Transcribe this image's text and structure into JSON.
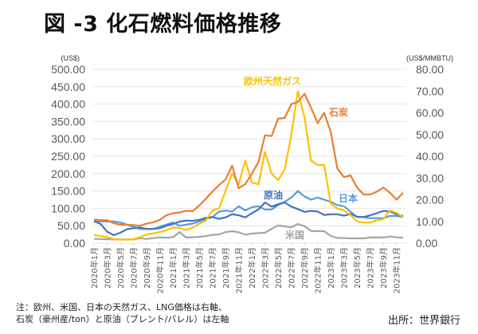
{
  "title": "図 -3 化石燃料価格推移",
  "note_lines": [
    "注：欧州、米国、日本の天然ガス、LNG価格は右軸、",
    "石炭（豪州産/ton）と原油（ブレント/バレル）は左軸"
  ],
  "source": "出所：世界銀行",
  "chart_data": {
    "type": "line",
    "title": "化石燃料価格推移",
    "left_axis": {
      "unit": "(US$)",
      "ylim": [
        0,
        500
      ],
      "ticks": [
        "0.00",
        "50.00",
        "100.00",
        "150.00",
        "200.00",
        "250.00",
        "300.00",
        "350.00",
        "400.00",
        "450.00",
        "500.00"
      ]
    },
    "right_axis": {
      "unit": "(US$/MMBTU)",
      "ylim": [
        0,
        80
      ],
      "ticks": [
        "0.00",
        "10.00",
        "20.00",
        "30.00",
        "40.00",
        "50.00",
        "60.00",
        "70.00",
        "80.00"
      ]
    },
    "x": [
      "2020年1月",
      "2020年2月",
      "2020年3月",
      "2020年4月",
      "2020年5月",
      "2020年6月",
      "2020年7月",
      "2020年8月",
      "2020年9月",
      "2020年10月",
      "2020年11月",
      "2020年12月",
      "2021年1月",
      "2021年2月",
      "2021年3月",
      "2021年4月",
      "2021年5月",
      "2021年6月",
      "2021年7月",
      "2021年8月",
      "2021年9月",
      "2021年10月",
      "2021年11月",
      "2021年12月",
      "2022年1月",
      "2022年2月",
      "2022年3月",
      "2022年4月",
      "2022年5月",
      "2022年6月",
      "2022年7月",
      "2022年8月",
      "2022年9月",
      "2022年10月",
      "2022年11月",
      "2022年12月",
      "2023年1月",
      "2023年2月",
      "2023年3月",
      "2023年4月",
      "2023年5月",
      "2023年6月",
      "2023年7月",
      "2023年8月",
      "2023年9月",
      "2023年10月",
      "2023年11月",
      "2023年12月"
    ],
    "x_tick_labels": [
      "2020年1月",
      "2020年3月",
      "2020年5月",
      "2020年7月",
      "2020年9月",
      "2020年11月",
      "2021年1月",
      "2021年3月",
      "2021年5月",
      "2021年7月",
      "2021年9月",
      "2021年11月",
      "2022年1月",
      "2022年3月",
      "2022年5月",
      "2022年7月",
      "2022年9月",
      "2022年11月",
      "2023年1月",
      "2023年3月",
      "2023年5月",
      "2023年7月",
      "2023年9月",
      "2023年11月"
    ],
    "grid": true,
    "legend": "inline-labels",
    "series": [
      {
        "name": "石炭",
        "axis": "left",
        "color": "#ED7D31",
        "values": [
          68,
          66,
          66,
          57,
          53,
          53,
          52,
          50,
          56,
          60,
          67,
          80,
          86,
          88,
          93,
          92,
          108,
          128,
          148,
          167,
          183,
          223,
          158,
          170,
          200,
          233,
          310,
          308,
          358,
          360,
          400,
          406,
          430,
          390,
          345,
          375,
          320,
          215,
          190,
          195,
          160,
          140,
          140,
          148,
          160,
          145,
          125,
          145
        ]
      },
      {
        "name": "原油",
        "axis": "left",
        "color": "#4472C4",
        "values": [
          63,
          55,
          33,
          23,
          30,
          40,
          43,
          45,
          41,
          41,
          43,
          50,
          55,
          62,
          65,
          64,
          67,
          73,
          75,
          70,
          74,
          83,
          80,
          74,
          86,
          97,
          117,
          105,
          112,
          117,
          105,
          98,
          90,
          93,
          91,
          81,
          83,
          83,
          79,
          84,
          76,
          75,
          80,
          86,
          93,
          91,
          83,
          78
        ]
      },
      {
        "name": "日本",
        "axis": "right",
        "color": "#5B9BD5",
        "values": [
          10,
          10,
          10,
          10,
          9.5,
          8.5,
          7.5,
          6.5,
          6.5,
          6.5,
          7.5,
          8.5,
          9.5,
          8,
          8.5,
          9,
          10,
          11,
          12,
          14.5,
          15,
          14.5,
          17,
          15,
          16.5,
          17,
          15.5,
          15.5,
          17.5,
          19,
          21,
          24,
          21.5,
          20,
          21,
          20,
          19,
          17.5,
          17,
          14.5,
          12,
          12,
          11.5,
          11.5,
          11.5,
          12.5,
          12.5,
          12
        ]
      },
      {
        "name": "欧州天然ガス",
        "axis": "right",
        "color": "#FFC000",
        "values": [
          3.8,
          3.2,
          2.8,
          1.9,
          1.6,
          1.7,
          1.8,
          2.8,
          4,
          4.5,
          5.1,
          5.9,
          7.2,
          7,
          6.1,
          7.1,
          8.9,
          10.3,
          15,
          16,
          24,
          32,
          27,
          38,
          28,
          27,
          42,
          32,
          29,
          34,
          50,
          70,
          58,
          38,
          36,
          36,
          18,
          16,
          15,
          13,
          10,
          9.5,
          9.5,
          10.5,
          11,
          15,
          14,
          12
        ]
      },
      {
        "name": "米国",
        "axis": "right",
        "color": "#A5A5A5",
        "values": [
          2,
          1.9,
          1.8,
          1.7,
          1.7,
          1.6,
          1.7,
          2.3,
          1.9,
          2.3,
          2.6,
          2.5,
          2.7,
          5.1,
          2.6,
          2.7,
          2.9,
          3.2,
          3.8,
          4,
          5.1,
          5.5,
          5,
          3.9,
          4.4,
          4.6,
          4.8,
          6.6,
          8.1,
          7.7,
          7.3,
          8.8,
          7.8,
          5.6,
          5.5,
          5.5,
          3.3,
          2.4,
          2.3,
          2.2,
          2.2,
          2.2,
          2.6,
          2.6,
          2.6,
          3,
          2.7,
          2.5
        ]
      }
    ],
    "annotations": [
      {
        "text": "欧州天然ガス",
        "series": "欧州天然ガス"
      },
      {
        "text": "石炭",
        "series": "石炭"
      },
      {
        "text": "原油",
        "series": "原油"
      },
      {
        "text": "日本",
        "series": "日本"
      },
      {
        "text": "米国",
        "series": "米国"
      }
    ]
  }
}
